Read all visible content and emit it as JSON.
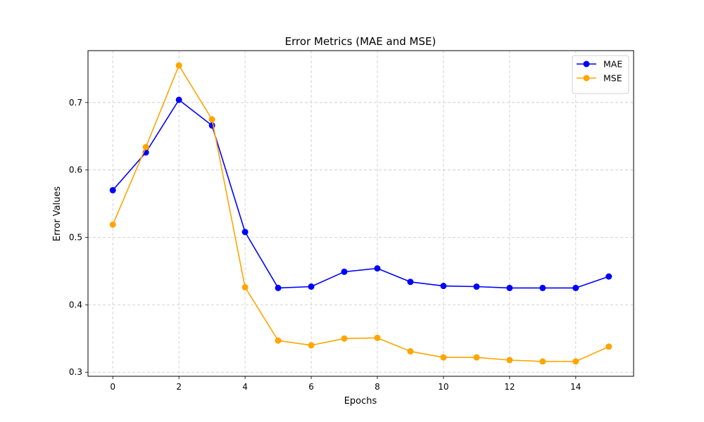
{
  "chart_data": {
    "type": "line",
    "title": "Error Metrics (MAE and MSE)",
    "xlabel": "Epochs",
    "ylabel": "Error Values",
    "x": [
      0,
      1,
      2,
      3,
      4,
      5,
      6,
      7,
      8,
      9,
      10,
      11,
      12,
      13,
      14,
      15
    ],
    "xlim": [
      -0.75,
      15.75
    ],
    "ylim": [
      0.294,
      0.777
    ],
    "xticks": [
      0,
      2,
      4,
      6,
      8,
      10,
      12,
      14
    ],
    "yticks": [
      0.3,
      0.4,
      0.5,
      0.6,
      0.7
    ],
    "xtick_labels": [
      "0",
      "2",
      "4",
      "6",
      "8",
      "10",
      "12",
      "14"
    ],
    "ytick_labels": [
      "0.3",
      "0.4",
      "0.5",
      "0.6",
      "0.7"
    ],
    "grid": true,
    "legend_position": "top-right",
    "series": [
      {
        "name": "MAE",
        "color": "#0000ff",
        "marker": "circle",
        "values": [
          0.57,
          0.626,
          0.704,
          0.666,
          0.508,
          0.425,
          0.427,
          0.449,
          0.454,
          0.434,
          0.428,
          0.427,
          0.425,
          0.425,
          0.425,
          0.442
        ]
      },
      {
        "name": "MSE",
        "color": "#ffa500",
        "marker": "circle",
        "values": [
          0.519,
          0.634,
          0.755,
          0.675,
          0.426,
          0.347,
          0.34,
          0.35,
          0.351,
          0.331,
          0.322,
          0.322,
          0.318,
          0.316,
          0.316,
          0.338
        ]
      }
    ]
  }
}
